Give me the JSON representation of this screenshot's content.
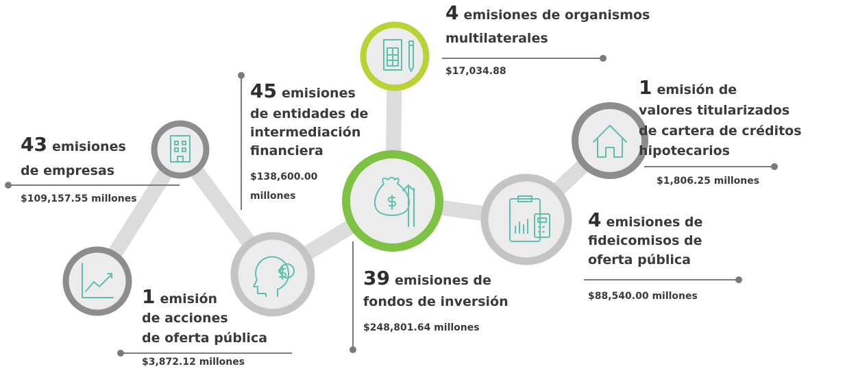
{
  "nodes": [
    {
      "count": 43,
      "lines": [
        "emisiones",
        "de empresas"
      ],
      "amount": [
        "$109,157.55 millones"
      ]
    },
    {
      "count": 45,
      "lines": [
        "emisiones",
        "de entidades de",
        "intermediación",
        "financiera"
      ],
      "amount": [
        "$138,600.00",
        "millones"
      ]
    },
    {
      "count": 4,
      "lines": [
        "emisiones de organismos",
        "multilaterales"
      ],
      "amount": [
        "$17,034.88"
      ]
    },
    {
      "count": 1,
      "lines": [
        "emisión de",
        "valores titularizados",
        "de cartera de créditos",
        "hipotecarios"
      ],
      "amount": [
        "$1,806.25 millones"
      ]
    },
    {
      "count": 4,
      "lines": [
        "emisiones de",
        "fideicomisos de",
        "oferta pública"
      ],
      "amount": [
        "$88,540.00 millones"
      ]
    },
    {
      "count": 39,
      "lines": [
        "emisiones de",
        "fondos de inversión"
      ],
      "amount": [
        "$248,801.64 millones"
      ]
    },
    {
      "count": 1,
      "lines": [
        "emisión",
        "de acciones",
        "de oferta pública"
      ],
      "amount": [
        "$3,872.12 millones"
      ]
    }
  ]
}
